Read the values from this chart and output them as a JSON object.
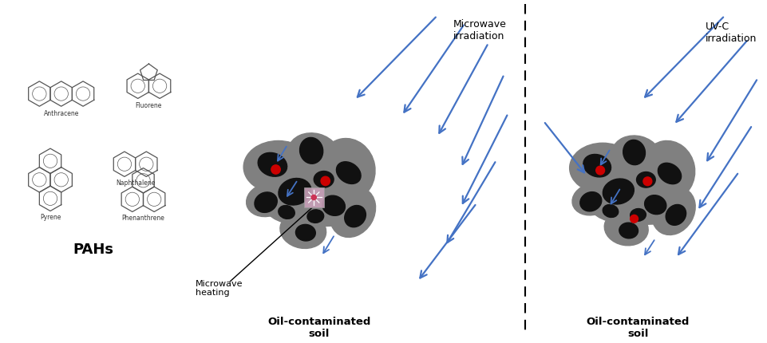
{
  "bg_color": "#ffffff",
  "pah_label": "PAHs",
  "microwave_label": "Microwave\nirradiation",
  "uvc_label": "UV-C\nirradiation",
  "soil_label1": "Oil-contaminated\nsoil",
  "soil_label2": "Oil-contaminated\nsoil",
  "heating_label": "Microwave\nheating",
  "arrow_color": "#4472C4",
  "soil_gray": "#808080",
  "soil_dark": "#111111",
  "red_dot": "#cc0000",
  "mw_box_color": "#c8a0b8"
}
